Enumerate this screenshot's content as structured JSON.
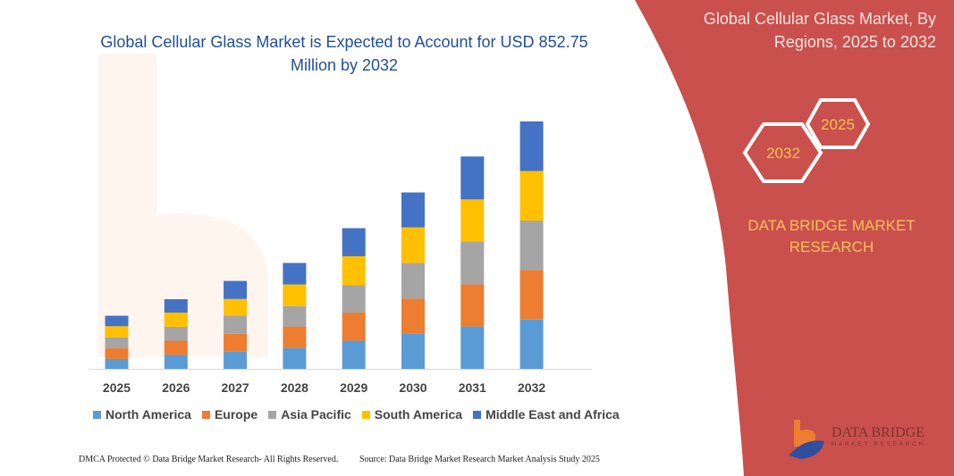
{
  "chart_data": {
    "type": "bar",
    "stacked": true,
    "title": "Global Cellular Glass Market is Expected to Account for USD 852.75 Million by 2032",
    "xlabel": "",
    "ylabel": "",
    "categories": [
      "2025",
      "2026",
      "2027",
      "2028",
      "2029",
      "2030",
      "2031",
      "2032"
    ],
    "series": [
      {
        "name": "North America",
        "color": "#5b9bd5",
        "values": [
          34,
          48,
          59,
          72,
          97,
          121,
          146,
          170
        ]
      },
      {
        "name": "Europe",
        "color": "#ed7d31",
        "values": [
          37,
          49,
          62,
          74,
          97,
          121,
          145,
          171
        ]
      },
      {
        "name": "Asia Pacific",
        "color": "#a5a5a5",
        "values": [
          37,
          48,
          62,
          70,
          95,
          123,
          148,
          170
        ]
      },
      {
        "name": "South America",
        "color": "#ffc000",
        "values": [
          39,
          49,
          58,
          75,
          99,
          123,
          145,
          171
        ]
      },
      {
        "name": "Middle East and Africa",
        "color": "#4472c4",
        "values": [
          36,
          46,
          62,
          74,
          97,
          120,
          148,
          171
        ]
      }
    ],
    "ylim": [
      0,
      852.75
    ],
    "grid": false,
    "legend_position": "bottom"
  },
  "side_panel": {
    "title_line1": "Global Cellular Glass Market, By",
    "title_line2": "Regions, 2025 to 2032",
    "hex_start": "2025",
    "hex_end": "2032",
    "brand_line1": "DATA BRIDGE MARKET",
    "brand_line2": "RESEARCH",
    "panel_color": "#c9504d",
    "logo": "DATA BRIDGE MARKET RESEARCH"
  },
  "footer": {
    "left": "DMCA Protected © Data Bridge Market Research- All Rights Reserved.",
    "right": "Source: Data Bridge Market Research Market Analysis Study 2025"
  }
}
